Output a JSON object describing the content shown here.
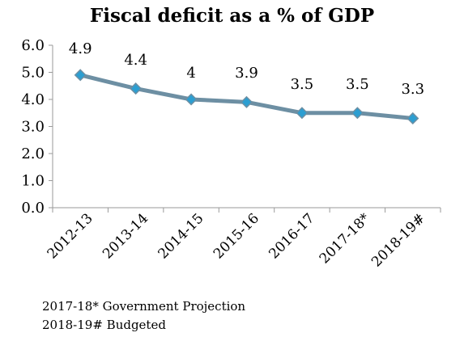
{
  "chart_data": {
    "type": "line",
    "title": "Fiscal deficit as a % of GDP",
    "xlabel": "",
    "ylabel": "",
    "categories": [
      "2012-13",
      "2013-14",
      "2014-15",
      "2015-16",
      "2016-17",
      "2017-18*",
      "2018-19#"
    ],
    "series": [
      {
        "values": [
          4.9,
          4.4,
          4,
          3.9,
          3.5,
          3.5,
          3.3
        ],
        "data_labels": [
          "4.9",
          "4.4",
          "4",
          "3.9",
          "3.5",
          "3.5",
          "3.3"
        ],
        "line_color": "#6d8fa3",
        "marker_color": "#2c9ed1",
        "marker": "diamond"
      }
    ],
    "ylim": [
      0,
      6
    ],
    "yticks": [
      "0.0",
      "1.0",
      "2.0",
      "3.0",
      "4.0",
      "5.0",
      "6.0"
    ],
    "grid": false,
    "legend": "none",
    "footnotes": [
      "2017-18* Government Projection",
      "2018-19# Budgeted"
    ]
  }
}
